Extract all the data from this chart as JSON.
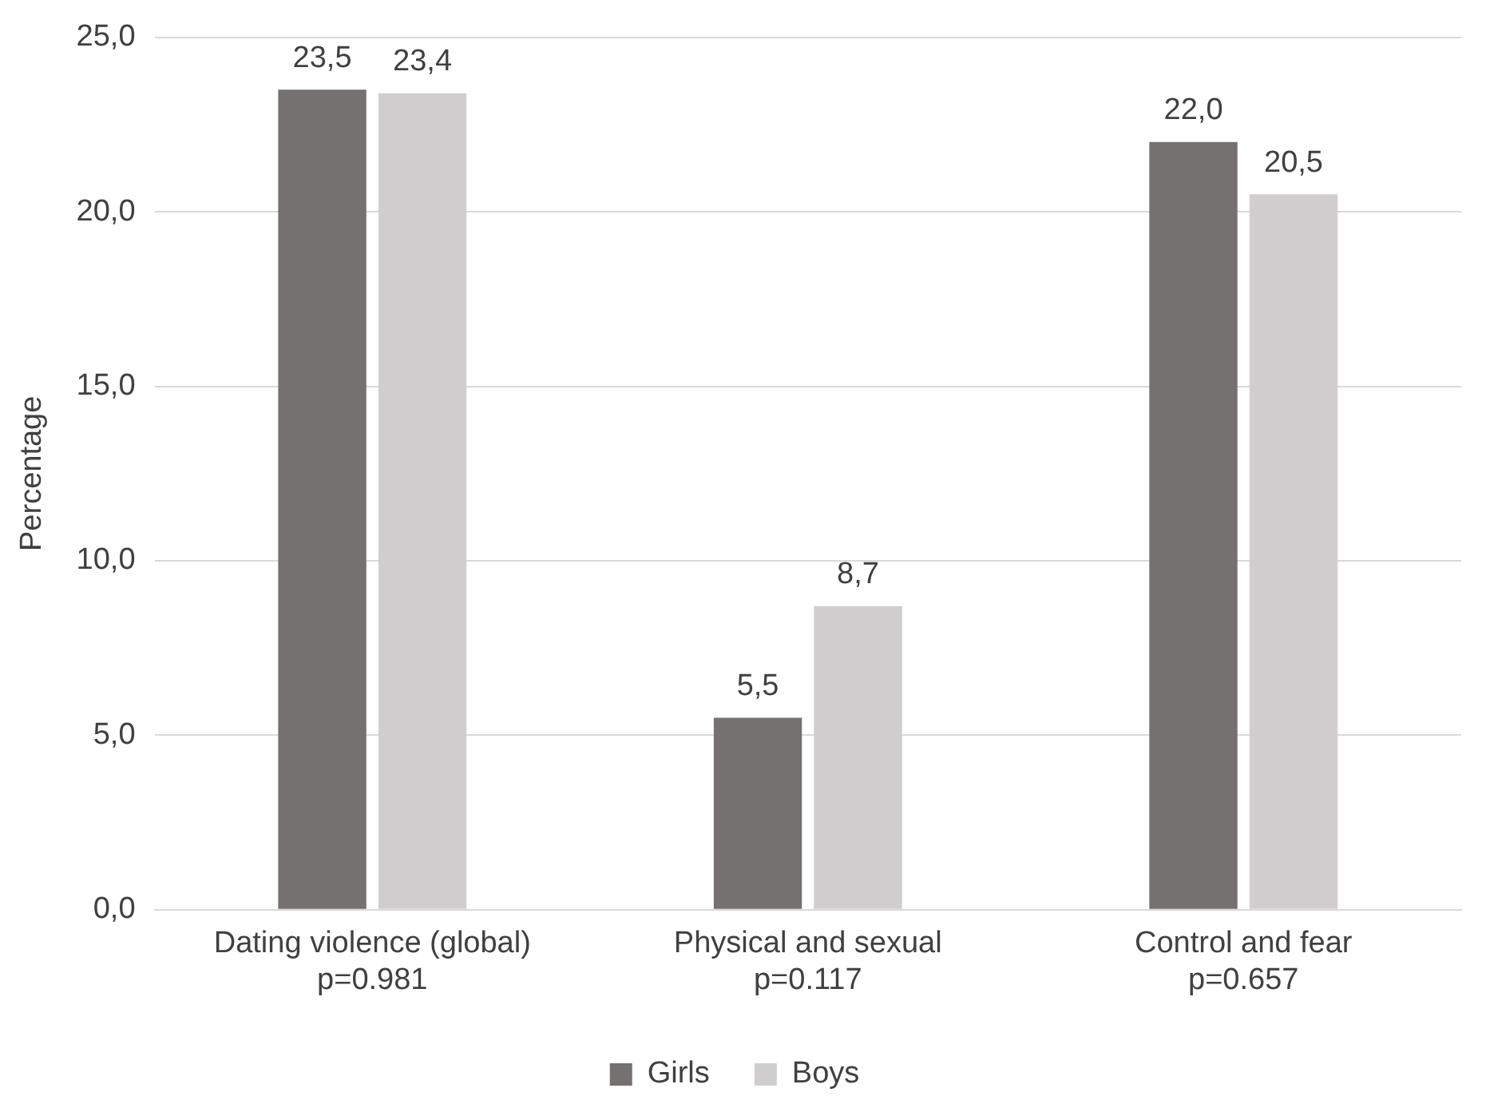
{
  "chart_data": {
    "type": "bar",
    "ylabel": "Percentage",
    "categories": [
      "Dating violence (global)\np=0.981",
      "Physical and sexual\np=0.117",
      "Control and fear\np=0.657"
    ],
    "series": [
      {
        "name": "Girls",
        "color": "#767171",
        "values": [
          23.5,
          5.5,
          22.0
        ],
        "value_labels": [
          "23,5",
          "5,5",
          "22,0"
        ]
      },
      {
        "name": "Boys",
        "color": "#d0cece",
        "values": [
          23.4,
          8.7,
          20.5
        ],
        "value_labels": [
          "23,4",
          "8,7",
          "20,5"
        ]
      }
    ],
    "ylim": [
      0,
      25
    ],
    "yticks": [
      {
        "value": 0,
        "label": "0,0"
      },
      {
        "value": 5,
        "label": "5,0"
      },
      {
        "value": 10,
        "label": "10,0"
      },
      {
        "value": 15,
        "label": "15,0"
      },
      {
        "value": 20,
        "label": "20,0"
      },
      {
        "value": 25,
        "label": "25,0"
      }
    ],
    "grid": "y",
    "legend": "bottom"
  }
}
